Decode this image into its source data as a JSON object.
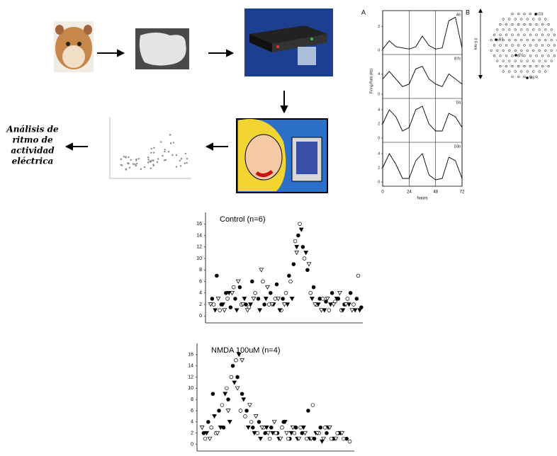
{
  "flow": {
    "analysis_lines": [
      "Análisis de",
      "ritmo de",
      "actividad",
      "eléctrica"
    ]
  },
  "panel_a": {
    "label": "A",
    "y_label": "Firing Rate (Hz)",
    "x_label": "hours",
    "xlim": [
      0,
      72
    ],
    "xticks": [
      0,
      24,
      48,
      72
    ],
    "x": [
      0,
      6,
      12,
      18,
      24,
      30,
      36,
      42,
      48,
      54,
      60,
      66,
      72
    ],
    "traces": [
      {
        "name": "A5",
        "ylim": [
          0,
          3
        ],
        "yticks": [
          0,
          2
        ],
        "values": [
          0.1,
          0.8,
          0.3,
          0.2,
          0.1,
          0.3,
          1.2,
          0.4,
          0.1,
          0.2,
          2.5,
          2.8,
          0.2
        ]
      },
      {
        "name": "B7b",
        "ylim": [
          0,
          7
        ],
        "yticks": [
          0,
          4
        ],
        "values": [
          3,
          4.5,
          3,
          1.5,
          2,
          5,
          5.5,
          3,
          2,
          1.5,
          4,
          3,
          2
        ]
      },
      {
        "name": "D4",
        "ylim": [
          0,
          5
        ],
        "yticks": [
          0,
          2,
          4
        ],
        "values": [
          2,
          4,
          3,
          1,
          1.5,
          4,
          4.5,
          2,
          1,
          1,
          3.5,
          3,
          1.5
        ]
      },
      {
        "name": "D3b",
        "ylim": [
          0,
          5
        ],
        "yticks": [
          0,
          2,
          4
        ],
        "values": [
          2,
          4,
          2.5,
          0.5,
          0.5,
          3,
          4,
          1,
          0.3,
          0.5,
          3.5,
          3,
          0.5
        ]
      }
    ]
  },
  "panel_b": {
    "label": "B",
    "scale": "0.5 mm",
    "electrodes": [
      "D3",
      "B7",
      "D1",
      "A5"
    ]
  },
  "chart_data": [
    {
      "type": "scatter",
      "title": "Control (n=6)",
      "xlim": [
        0,
        100
      ],
      "ylim": [
        -1.2,
        18
      ],
      "yticks": [
        0,
        2,
        4,
        6,
        8,
        10,
        12,
        14,
        16
      ],
      "series": [
        {
          "marker": "filled-circle",
          "color": "#000000",
          "x": [
            2,
            5,
            8,
            11,
            14,
            17,
            20,
            24,
            28,
            32,
            36,
            40,
            44,
            48,
            52,
            55,
            58,
            61,
            64,
            68,
            72,
            76,
            80,
            84,
            88,
            92,
            96,
            99
          ],
          "values": [
            3,
            7,
            2,
            4,
            1.5,
            3,
            5,
            2,
            6,
            3,
            2,
            4,
            5.5,
            3,
            7,
            9,
            14,
            12,
            8,
            5,
            3,
            2.5,
            4,
            3,
            2,
            4,
            3,
            1.5
          ]
        },
        {
          "marker": "open-circle",
          "color": "#000000",
          "x": [
            3,
            7,
            12,
            16,
            21,
            26,
            30,
            35,
            39,
            43,
            47,
            50,
            53,
            56,
            59,
            62,
            66,
            70,
            74,
            78,
            82,
            86,
            90,
            94,
            97
          ],
          "values": [
            2,
            1,
            3,
            5,
            2,
            1.5,
            4,
            6,
            2,
            3,
            1,
            4,
            6,
            13,
            16,
            10,
            4,
            2,
            3,
            1,
            2.5,
            1,
            3,
            2,
            7
          ]
        },
        {
          "marker": "filled-triangle",
          "color": "#000000",
          "x": [
            4,
            9,
            13,
            18,
            23,
            27,
            33,
            37,
            42,
            46,
            51,
            54,
            57,
            60,
            63,
            67,
            71,
            75,
            79,
            83,
            87,
            91,
            95,
            98
          ],
          "values": [
            1,
            2,
            4,
            1,
            3,
            2,
            1,
            3,
            2,
            1,
            2,
            3,
            12,
            15,
            11,
            3,
            2,
            1,
            2,
            3,
            1,
            2,
            1,
            1
          ]
        },
        {
          "marker": "open-triangle",
          "color": "#000000",
          "x": [
            1,
            6,
            10,
            15,
            19,
            22,
            25,
            29,
            34,
            38,
            41,
            45,
            49,
            57,
            65,
            69,
            73,
            77,
            81,
            85,
            89,
            93
          ],
          "values": [
            2,
            3,
            1,
            4,
            6,
            2,
            1,
            3,
            8,
            5,
            2,
            3,
            2,
            11,
            9,
            2,
            1,
            3,
            2,
            4,
            2,
            1
          ]
        }
      ]
    },
    {
      "type": "scatter",
      "title": "NMDA 100uM (n=4)",
      "xlim": [
        0,
        100
      ],
      "ylim": [
        -1.2,
        18
      ],
      "yticks": [
        0,
        2,
        4,
        6,
        8,
        10,
        12,
        14,
        16
      ],
      "series": [
        {
          "marker": "filled-circle",
          "color": "#000000",
          "x": [
            2,
            5,
            8,
            12,
            15,
            18,
            21,
            24,
            27,
            30,
            34,
            38,
            42,
            46,
            50,
            54,
            58,
            62,
            66,
            70,
            74,
            78,
            82,
            86,
            90,
            95
          ],
          "values": [
            2,
            4,
            9,
            6,
            3,
            8,
            14,
            12,
            9,
            6,
            3,
            4,
            2,
            3,
            2,
            4,
            1,
            3,
            2,
            6,
            1,
            3,
            2,
            1,
            2,
            1
          ]
        },
        {
          "marker": "open-circle",
          "color": "#000000",
          "x": [
            3,
            7,
            10,
            14,
            17,
            20,
            23,
            26,
            29,
            33,
            37,
            41,
            45,
            49,
            53,
            57,
            61,
            65,
            69,
            73,
            77,
            81,
            85,
            89,
            93,
            97
          ],
          "values": [
            1,
            3,
            2,
            7,
            10,
            12,
            15,
            6,
            5,
            4,
            2,
            3,
            1,
            2,
            3,
            1,
            2,
            3,
            1,
            7,
            2,
            3,
            1,
            2,
            1,
            0.5
          ]
        },
        {
          "marker": "filled-triangle",
          "color": "#000000",
          "x": [
            4,
            9,
            13,
            16,
            19,
            22,
            25,
            28,
            31,
            35,
            39,
            43,
            47,
            51,
            55,
            59,
            63,
            67,
            71,
            75,
            79,
            83,
            87,
            91
          ],
          "values": [
            2,
            5,
            3,
            9,
            4,
            11,
            16,
            8,
            3,
            2,
            1,
            3,
            2,
            1,
            4,
            2,
            1,
            3,
            1,
            2,
            0.5,
            3,
            1,
            2
          ]
        },
        {
          "marker": "open-triangle",
          "color": "#000000",
          "x": [
            1,
            6,
            11,
            18,
            24,
            27,
            32,
            36,
            40,
            44,
            48,
            52,
            56,
            60,
            64,
            68,
            72,
            76,
            80,
            84,
            88,
            92
          ],
          "values": [
            3,
            1,
            2,
            6,
            10,
            15,
            7,
            5,
            3,
            2,
            4,
            1,
            2,
            3,
            1,
            2,
            1,
            2,
            1,
            3,
            1,
            2
          ]
        }
      ]
    }
  ]
}
